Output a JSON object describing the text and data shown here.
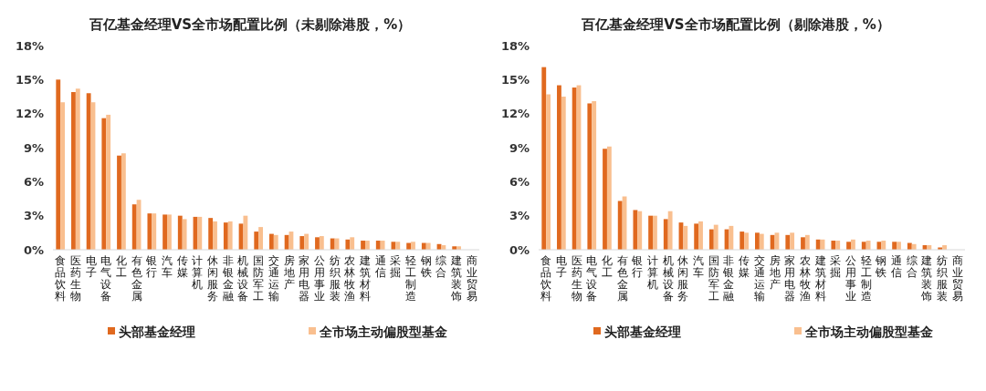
{
  "chart_data": [
    {
      "type": "bar",
      "title": "百亿基金经理VS全市场配置比例（未剔除港股，%）",
      "categories": [
        "食品饮料",
        "医药生物",
        "电子",
        "电气设备",
        "化工",
        "有色金属",
        "银行",
        "汽车",
        "传媒",
        "计算机",
        "休闲服务",
        "非银金融",
        "机械设备",
        "国防军工",
        "交通运输",
        "房地产",
        "家用电器",
        "公用事业",
        "纺织服装",
        "农林牧渔",
        "建筑材料",
        "通信",
        "采掘",
        "轻工制造",
        "钢铁",
        "综合",
        "建筑装饰",
        "商业贸易"
      ],
      "series": [
        {
          "name": "头部基金经理",
          "color": "#e0691f",
          "values": [
            15.0,
            13.9,
            13.8,
            11.6,
            8.3,
            4.0,
            3.2,
            3.1,
            3.0,
            2.9,
            2.8,
            2.4,
            2.3,
            1.6,
            1.4,
            1.3,
            1.2,
            1.1,
            1.0,
            0.9,
            0.8,
            0.8,
            0.7,
            0.6,
            0.6,
            0.5,
            0.3,
            0
          ]
        },
        {
          "name": "全市场主动偏股型基金",
          "color": "#f9bf8f",
          "values": [
            13.0,
            14.2,
            13.0,
            11.9,
            8.5,
            4.4,
            3.2,
            3.1,
            2.7,
            2.9,
            2.5,
            2.5,
            3.0,
            2.0,
            1.3,
            1.6,
            1.4,
            1.2,
            1.0,
            1.1,
            0.8,
            0.8,
            0.7,
            0.7,
            0.6,
            0.4,
            0.3,
            0
          ]
        }
      ],
      "ylim": [
        0,
        18
      ],
      "yticks": [
        {
          "value": 0,
          "label": "0%"
        },
        {
          "value": 3,
          "label": "3%"
        },
        {
          "value": 6,
          "label": "6%"
        },
        {
          "value": 9,
          "label": "9%"
        },
        {
          "value": 12,
          "label": "12%"
        },
        {
          "value": 15,
          "label": "15%"
        },
        {
          "value": 18,
          "label": "18%"
        }
      ],
      "legend": "bottom"
    },
    {
      "type": "bar",
      "title": "百亿基金经理VS全市场配置比例（剔除港股，%）",
      "categories": [
        "食品饮料",
        "电子",
        "医药生物",
        "电气设备",
        "化工",
        "有色金属",
        "银行",
        "计算机",
        "机械设备",
        "休闲服务",
        "汽车",
        "国防军工",
        "非银金融",
        "传媒",
        "交通运输",
        "房地产",
        "家用电器",
        "农林牧渔",
        "建筑材料",
        "采掘",
        "公用事业",
        "轻工制造",
        "钢铁",
        "通信",
        "综合",
        "建筑装饰",
        "纺织服装",
        "商业贸易"
      ],
      "series": [
        {
          "name": "头部基金经理",
          "color": "#e0691f",
          "values": [
            16.1,
            14.5,
            14.3,
            12.9,
            8.9,
            4.3,
            3.5,
            3.0,
            2.7,
            2.4,
            2.3,
            1.8,
            1.8,
            1.6,
            1.5,
            1.3,
            1.3,
            1.1,
            0.9,
            0.8,
            0.7,
            0.7,
            0.7,
            0.7,
            0.6,
            0.4,
            0.2,
            0
          ]
        },
        {
          "name": "全市场主动偏股型基金",
          "color": "#f9bf8f",
          "values": [
            13.7,
            13.5,
            14.5,
            13.1,
            9.1,
            4.7,
            3.4,
            3.0,
            3.4,
            2.1,
            2.5,
            2.2,
            2.1,
            1.5,
            1.4,
            1.5,
            1.5,
            1.3,
            0.9,
            0.8,
            0.9,
            0.8,
            0.8,
            0.7,
            0.5,
            0.4,
            0.4,
            0
          ]
        }
      ],
      "ylim": [
        0,
        18
      ],
      "yticks": [
        {
          "value": 0,
          "label": "0%"
        },
        {
          "value": 3,
          "label": "3%"
        },
        {
          "value": 6,
          "label": "6%"
        },
        {
          "value": 9,
          "label": "9%"
        },
        {
          "value": 12,
          "label": "12%"
        },
        {
          "value": 15,
          "label": "15%"
        },
        {
          "value": 18,
          "label": "18%"
        }
      ],
      "legend": "bottom"
    }
  ]
}
